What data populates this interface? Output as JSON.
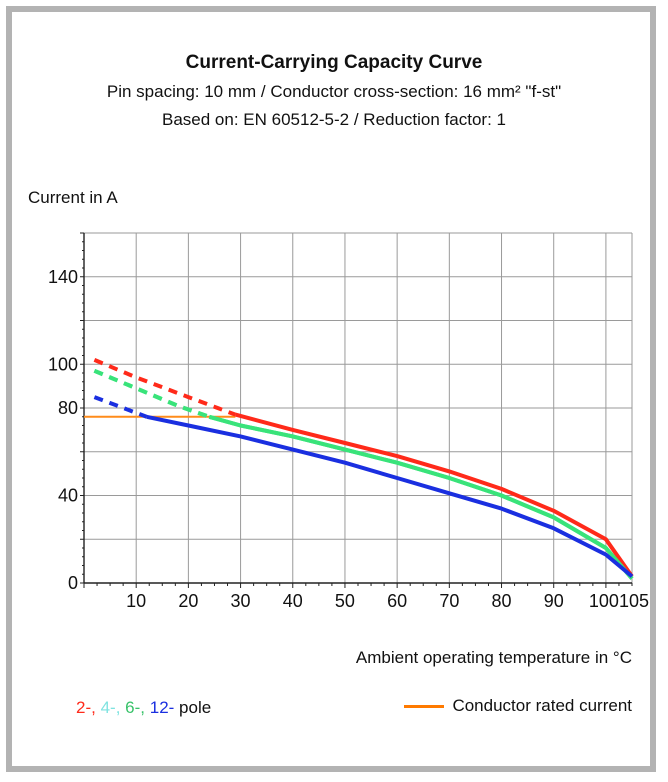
{
  "chart_data": {
    "type": "line",
    "title": "Current-Carrying Capacity Curve",
    "subtitle_lines": [
      "Pin spacing: 10 mm / Conductor cross-section: 16 mm² \"f-st\"",
      "Based on: EN 60512-5-2 / Reduction factor: 1"
    ],
    "ylabel": "Current in A",
    "xlabel": "Ambient operating temperature in °C",
    "xlim": [
      0,
      105
    ],
    "ylim": [
      0,
      160
    ],
    "x_ticks": [
      10,
      20,
      30,
      40,
      50,
      60,
      70,
      80,
      90,
      100,
      105
    ],
    "x_tick_labels": [
      "10",
      "20",
      "30",
      "40",
      "50",
      "60",
      "70",
      "80",
      "90",
      "100",
      "105"
    ],
    "y_ticks": [
      0,
      40,
      80,
      100,
      140
    ],
    "y_tick_labels": [
      "0",
      "40",
      "80",
      "100",
      "140"
    ],
    "grid": true,
    "series": [
      {
        "name": "2-",
        "color": "#ff2a1a",
        "dashed_until_x": 29,
        "points": [
          [
            2,
            102
          ],
          [
            10,
            94
          ],
          [
            20,
            85
          ],
          [
            29,
            77
          ],
          [
            40,
            70
          ],
          [
            50,
            64
          ],
          [
            60,
            58
          ],
          [
            70,
            51
          ],
          [
            80,
            43
          ],
          [
            90,
            33
          ],
          [
            100,
            20
          ],
          [
            105,
            3
          ]
        ]
      },
      {
        "name": "4-",
        "color": "#39e37a",
        "dashed_until_x": 24,
        "points": [
          [
            2,
            97
          ],
          [
            10,
            89
          ],
          [
            18,
            81
          ],
          [
            24,
            76
          ],
          [
            30,
            72
          ],
          [
            40,
            67
          ],
          [
            50,
            61
          ],
          [
            60,
            55
          ],
          [
            70,
            48
          ],
          [
            80,
            40
          ],
          [
            90,
            30
          ],
          [
            100,
            16
          ],
          [
            105,
            2
          ]
        ]
      },
      {
        "name": "6-",
        "color": "#39e37a",
        "dashed_until_x": 24,
        "points": [
          [
            2,
            97
          ],
          [
            10,
            89
          ],
          [
            18,
            81
          ],
          [
            24,
            76
          ],
          [
            30,
            72
          ],
          [
            40,
            67
          ],
          [
            50,
            61
          ],
          [
            60,
            55
          ],
          [
            70,
            48
          ],
          [
            80,
            40
          ],
          [
            90,
            30
          ],
          [
            100,
            16
          ],
          [
            105,
            2
          ]
        ]
      },
      {
        "name": "12-",
        "color": "#1a2fe0",
        "dashed_until_x": 12,
        "points": [
          [
            2,
            85
          ],
          [
            12,
            76
          ],
          [
            20,
            72
          ],
          [
            30,
            67
          ],
          [
            40,
            61
          ],
          [
            50,
            55
          ],
          [
            60,
            48
          ],
          [
            70,
            41
          ],
          [
            80,
            34
          ],
          [
            90,
            25
          ],
          [
            100,
            13
          ],
          [
            105,
            3
          ]
        ]
      }
    ],
    "reference_line": {
      "name": "Conductor rated current",
      "color": "#ff8c1a",
      "y": 76,
      "x_range": [
        0,
        29
      ]
    }
  },
  "legend": {
    "pole_parts": [
      {
        "text": "2-",
        "color": "#ff2a1a"
      },
      {
        "text": ", ",
        "color": "#ff2a1a"
      },
      {
        "text": "4-",
        "color": "#7fe3e0"
      },
      {
        "text": ", ",
        "color": "#7fe3e0"
      },
      {
        "text": "6-",
        "color": "#39c26a"
      },
      {
        "text": ", ",
        "color": "#39c26a"
      },
      {
        "text": "12-",
        "color": "#1a2fe0"
      },
      {
        "text": " pole",
        "color": "#111111"
      }
    ],
    "rated_label": "Conductor rated current"
  }
}
